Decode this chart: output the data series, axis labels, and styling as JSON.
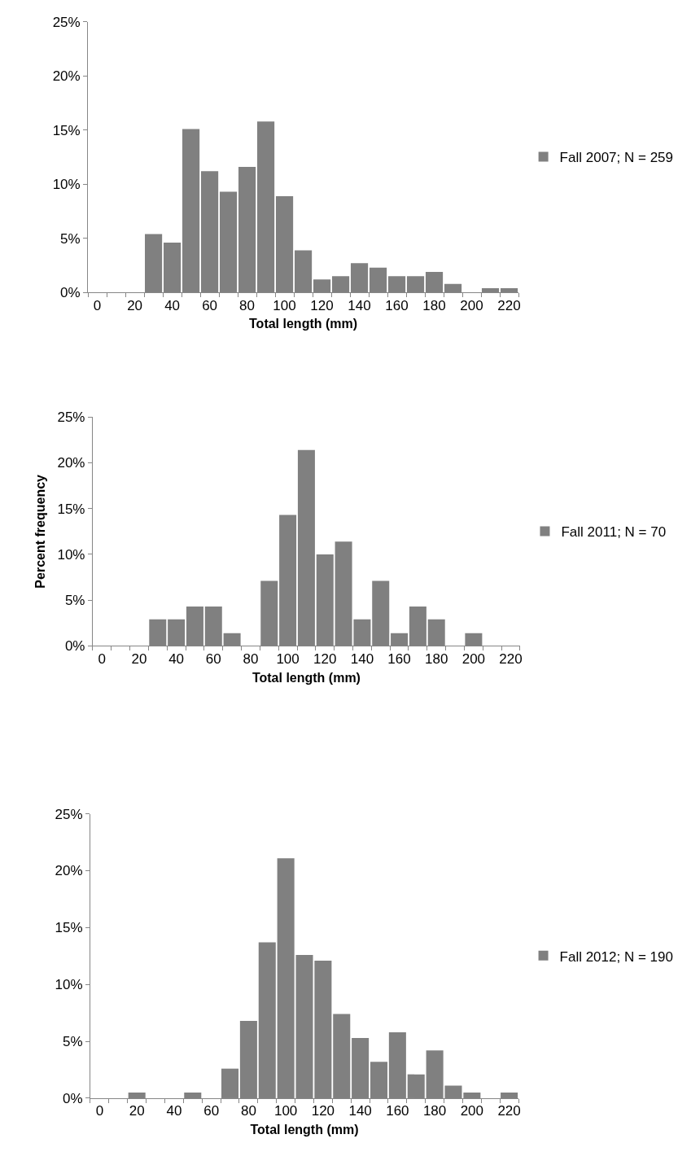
{
  "chart_data": [
    {
      "type": "bar",
      "categories": [
        "0",
        null,
        "20",
        null,
        "40",
        null,
        "60",
        null,
        "80",
        null,
        "100",
        null,
        "120",
        null,
        "140",
        null,
        "160",
        null,
        "180",
        null,
        "200",
        null,
        "220"
      ],
      "series": [
        {
          "name": "Fall 2007; N = 259",
          "color": "#808080",
          "values": [
            0,
            0,
            0,
            5.4,
            4.6,
            15.1,
            11.2,
            9.3,
            11.6,
            15.8,
            8.9,
            3.9,
            1.2,
            1.5,
            2.7,
            2.3,
            1.5,
            1.5,
            1.9,
            0.8,
            0,
            0.4,
            0.4
          ]
        }
      ],
      "xlabel": "Total length (mm)",
      "ylim": [
        0,
        25
      ],
      "yticks": [
        {
          "value": 0,
          "label": "0%"
        },
        {
          "value": 5,
          "label": "5%"
        },
        {
          "value": 10,
          "label": "10%"
        },
        {
          "value": 15,
          "label": "15%"
        },
        {
          "value": 20,
          "label": "20%"
        },
        {
          "value": 25,
          "label": "25%"
        }
      ],
      "legend": "right"
    },
    {
      "type": "bar",
      "categories": [
        "0",
        null,
        "20",
        null,
        "40",
        null,
        "60",
        null,
        "80",
        null,
        "100",
        null,
        "120",
        null,
        "140",
        null,
        "160",
        null,
        "180",
        null,
        "200",
        null,
        "220"
      ],
      "series": [
        {
          "name": "Fall 2011; N = 70",
          "color": "#808080",
          "values": [
            0,
            0,
            0,
            2.9,
            2.9,
            4.3,
            4.3,
            1.4,
            0,
            7.1,
            14.3,
            21.4,
            10.0,
            11.4,
            2.9,
            7.1,
            1.4,
            4.3,
            2.9,
            0,
            1.4,
            0,
            0
          ]
        }
      ],
      "xlabel": "Total length (mm)",
      "ylabel": "Percent frequency",
      "ylim": [
        0,
        25
      ],
      "yticks": [
        {
          "value": 0,
          "label": "0%"
        },
        {
          "value": 5,
          "label": "5%"
        },
        {
          "value": 10,
          "label": "10%"
        },
        {
          "value": 15,
          "label": "15%"
        },
        {
          "value": 20,
          "label": "20%"
        },
        {
          "value": 25,
          "label": "25%"
        }
      ],
      "legend": "right"
    },
    {
      "type": "bar",
      "categories": [
        "0",
        null,
        "20",
        null,
        "40",
        null,
        "60",
        null,
        "80",
        null,
        "100",
        null,
        "120",
        null,
        "140",
        null,
        "160",
        null,
        "180",
        null,
        "200",
        null,
        "220"
      ],
      "series": [
        {
          "name": "Fall 2012; N = 190",
          "color": "#808080",
          "values": [
            0,
            0,
            0.5,
            0,
            0,
            0.5,
            0,
            2.6,
            6.8,
            13.7,
            21.1,
            12.6,
            12.1,
            7.4,
            5.3,
            3.2,
            5.8,
            2.1,
            4.2,
            1.1,
            0.5,
            0,
            0.5
          ]
        }
      ],
      "xlabel": "Total length (mm)",
      "ylim": [
        0,
        25
      ],
      "yticks": [
        {
          "value": 0,
          "label": "0%"
        },
        {
          "value": 5,
          "label": "5%"
        },
        {
          "value": 10,
          "label": "10%"
        },
        {
          "value": 15,
          "label": "15%"
        },
        {
          "value": 20,
          "label": "20%"
        },
        {
          "value": 25,
          "label": "25%"
        }
      ],
      "legend": "right"
    }
  ]
}
